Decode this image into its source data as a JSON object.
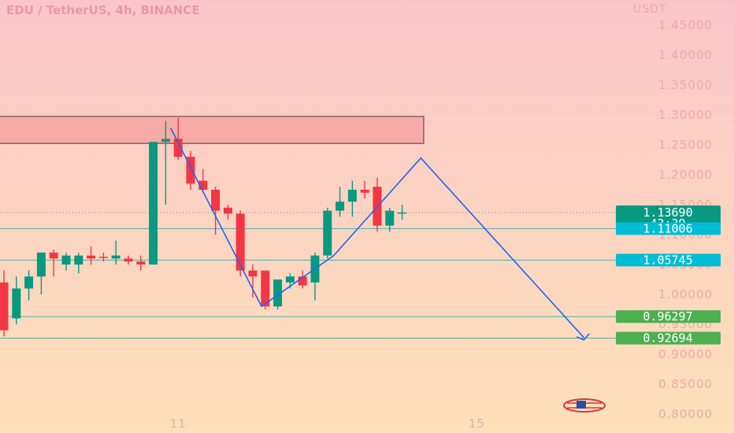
{
  "chart_data": {
    "type": "candlestick",
    "title": "EDU / TetherUS, 4h, BINANCE",
    "y_unit": "USDT",
    "ylim": [
      0.78,
      1.47
    ],
    "y_ticks": [
      "1.45000",
      "1.40000",
      "1.35000",
      "1.30000",
      "1.25000",
      "1.20000",
      "1.15000",
      "1.10000",
      "1.05000",
      "1.00000",
      "0.95000",
      "0.90000",
      "0.85000",
      "0.80000"
    ],
    "x_ticks": [
      {
        "label": "11",
        "bar": 14
      },
      {
        "label": "15",
        "bar": 38
      }
    ],
    "colors": {
      "up": "#089981",
      "down": "#f23645",
      "projection": "#1e66f5",
      "zone_fill": "#f8aaa6"
    },
    "candles": [
      {
        "o": 1.02,
        "h": 1.04,
        "l": 0.93,
        "c": 0.94
      },
      {
        "o": 0.96,
        "h": 1.03,
        "l": 0.95,
        "c": 1.01
      },
      {
        "o": 1.01,
        "h": 1.04,
        "l": 0.99,
        "c": 1.03
      },
      {
        "o": 1.03,
        "h": 1.07,
        "l": 1.0,
        "c": 1.07
      },
      {
        "o": 1.07,
        "h": 1.075,
        "l": 1.03,
        "c": 1.06
      },
      {
        "o": 1.05,
        "h": 1.07,
        "l": 1.04,
        "c": 1.065
      },
      {
        "o": 1.05,
        "h": 1.07,
        "l": 1.035,
        "c": 1.065
      },
      {
        "o": 1.065,
        "h": 1.08,
        "l": 1.05,
        "c": 1.06
      },
      {
        "o": 1.063,
        "h": 1.07,
        "l": 1.055,
        "c": 1.061
      },
      {
        "o": 1.06,
        "h": 1.09,
        "l": 1.05,
        "c": 1.065
      },
      {
        "o": 1.06,
        "h": 1.065,
        "l": 1.05,
        "c": 1.055
      },
      {
        "o": 1.055,
        "h": 1.065,
        "l": 1.04,
        "c": 1.05
      },
      {
        "o": 1.05,
        "h": 1.25,
        "l": 1.05,
        "c": 1.255
      },
      {
        "o": 1.255,
        "h": 1.29,
        "l": 1.15,
        "c": 1.26
      },
      {
        "o": 1.26,
        "h": 1.295,
        "l": 1.225,
        "c": 1.23
      },
      {
        "o": 1.23,
        "h": 1.24,
        "l": 1.175,
        "c": 1.185
      },
      {
        "o": 1.19,
        "h": 1.21,
        "l": 1.17,
        "c": 1.175
      },
      {
        "o": 1.175,
        "h": 1.18,
        "l": 1.1,
        "c": 1.14
      },
      {
        "o": 1.145,
        "h": 1.15,
        "l": 1.125,
        "c": 1.135
      },
      {
        "o": 1.135,
        "h": 1.14,
        "l": 1.03,
        "c": 1.04
      },
      {
        "o": 1.04,
        "h": 1.05,
        "l": 0.995,
        "c": 1.03
      },
      {
        "o": 1.04,
        "h": 1.04,
        "l": 0.975,
        "c": 0.98
      },
      {
        "o": 0.98,
        "h": 1.025,
        "l": 0.975,
        "c": 1.025
      },
      {
        "o": 1.02,
        "h": 1.035,
        "l": 1.01,
        "c": 1.03
      },
      {
        "o": 1.03,
        "h": 1.04,
        "l": 1.01,
        "c": 1.015
      },
      {
        "o": 1.02,
        "h": 1.07,
        "l": 0.99,
        "c": 1.065
      },
      {
        "o": 1.065,
        "h": 1.145,
        "l": 1.06,
        "c": 1.14
      },
      {
        "o": 1.14,
        "h": 1.18,
        "l": 1.13,
        "c": 1.155
      },
      {
        "o": 1.155,
        "h": 1.19,
        "l": 1.13,
        "c": 1.175
      },
      {
        "o": 1.175,
        "h": 1.19,
        "l": 1.16,
        "c": 1.17
      },
      {
        "o": 1.18,
        "h": 1.195,
        "l": 1.105,
        "c": 1.115
      },
      {
        "o": 1.115,
        "h": 1.145,
        "l": 1.105,
        "c": 1.14
      },
      {
        "o": 1.135,
        "h": 1.15,
        "l": 1.125,
        "c": 1.137
      }
    ],
    "resistance_zone": {
      "from": 1.2525,
      "to": 1.2975
    },
    "horizontal_lines": [
      {
        "value": 1.1369,
        "style": "dotted"
      },
      {
        "value": 1.11006,
        "style": "solid"
      },
      {
        "value": 1.05745,
        "style": "solid"
      },
      {
        "value": 0.96297,
        "style": "solid"
      },
      {
        "value": 0.92694,
        "style": "solid"
      }
    ],
    "projection_path": [
      {
        "bar": 13.4,
        "value": 1.278
      },
      {
        "bar": 20.7,
        "value": 0.98
      },
      {
        "bar": 26.5,
        "value": 1.065
      },
      {
        "bar": 33.5,
        "value": 1.228
      },
      {
        "bar": 46.6,
        "value": 0.928
      }
    ],
    "price_tags": [
      {
        "value": 1.1369,
        "label": "1.13690",
        "sub": "43:39",
        "color": "#089981"
      },
      {
        "value": 1.11006,
        "label": "1.11006",
        "color": "#00bcd4"
      },
      {
        "value": 1.05745,
        "label": "1.05745",
        "color": "#00bcd4"
      },
      {
        "value": 0.96297,
        "label": "0.96297",
        "color": "#4caf50"
      },
      {
        "value": 0.92694,
        "label": "0.92694",
        "color": "#4caf50"
      }
    ]
  }
}
